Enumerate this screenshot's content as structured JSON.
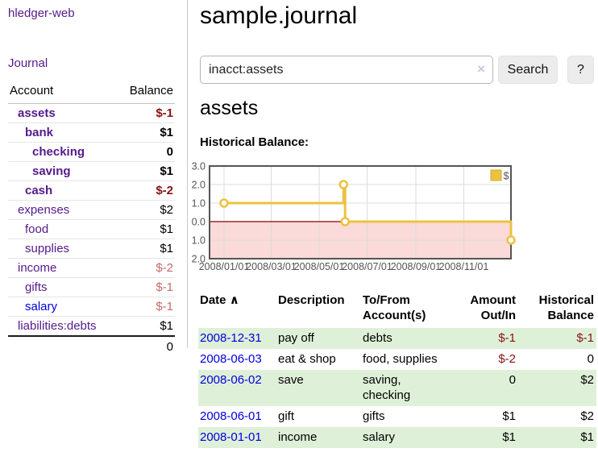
{
  "colors": {
    "link_visited_purple": "#551a8b",
    "link_blue": "#0000dd",
    "negative_strong": "#871414",
    "negative_soft": "#c46a6a",
    "row_green": "#dff0d8",
    "series_gold": "#edc240",
    "negative_region_pink": "#fbdada",
    "zero_line_red": "#8b0000",
    "axis_text_gray": "#545454"
  },
  "app": {
    "brand": "hledger-web",
    "journal_link": "Journal"
  },
  "sidebar": {
    "col_account": "Account",
    "col_balance": "Balance",
    "accounts": [
      {
        "name": "assets",
        "balance": "$-1",
        "level": 1,
        "emph": true,
        "neg": "strong"
      },
      {
        "name": "bank",
        "balance": "$1",
        "level": 2,
        "emph": true,
        "neg": "none"
      },
      {
        "name": "checking",
        "balance": "0",
        "level": 3,
        "emph": true,
        "neg": "none"
      },
      {
        "name": "saving",
        "balance": "$1",
        "level": 3,
        "emph": true,
        "neg": "none"
      },
      {
        "name": "cash",
        "balance": "$-2",
        "level": 2,
        "emph": true,
        "neg": "strong"
      },
      {
        "name": "expenses",
        "balance": "$2",
        "level": 1,
        "emph": false,
        "neg": "none"
      },
      {
        "name": "food",
        "balance": "$1",
        "level": 2,
        "emph": false,
        "neg": "none"
      },
      {
        "name": "supplies",
        "balance": "$1",
        "level": 2,
        "emph": false,
        "neg": "none"
      },
      {
        "name": "income",
        "balance": "$-2",
        "level": 1,
        "emph": false,
        "neg": "soft"
      },
      {
        "name": "gifts",
        "balance": "$-1",
        "level": 2,
        "emph": false,
        "neg": "soft"
      },
      {
        "name": "salary",
        "balance": "$-1",
        "level": 2,
        "emph": false,
        "neg": "soft",
        "link": "unvisited"
      },
      {
        "name": "liabilities:debts",
        "balance": "$1",
        "level": 1,
        "emph": false,
        "neg": "none"
      }
    ],
    "total": "0"
  },
  "header": {
    "title": "sample.journal"
  },
  "search": {
    "query": "inacct:assets",
    "clear_icon": "×",
    "button_label": "Search",
    "help_label": "?"
  },
  "register": {
    "heading": "assets",
    "chart_title": "Historical Balance:",
    "table": {
      "sort_icon": "∧",
      "headers": [
        "Date",
        "Description",
        "To/From Account(s)",
        "Amount Out/In",
        "Historical Balance"
      ],
      "rows": [
        {
          "date": "2008-12-31",
          "description": "pay off",
          "accounts": "debts",
          "amount": "$-1",
          "amount_neg": true,
          "balance": "$-1",
          "balance_neg": true,
          "shade": true
        },
        {
          "date": "2008-06-03",
          "description": "eat & shop",
          "accounts": "food, supplies",
          "amount": "$-2",
          "amount_neg": true,
          "balance": "0",
          "balance_neg": false,
          "shade": false
        },
        {
          "date": "2008-06-02",
          "description": "save",
          "accounts": "saving,\nchecking",
          "amount": "0",
          "amount_neg": false,
          "balance": "$2",
          "balance_neg": false,
          "shade": true
        },
        {
          "date": "2008-06-01",
          "description": "gift",
          "accounts": "gifts",
          "amount": "$1",
          "amount_neg": false,
          "balance": "$2",
          "balance_neg": false,
          "shade": false
        },
        {
          "date": "2008-01-01",
          "description": "income",
          "accounts": "salary",
          "amount": "$1",
          "amount_neg": false,
          "balance": "$1",
          "balance_neg": false,
          "shade": true
        }
      ]
    }
  },
  "chart_data": {
    "type": "line",
    "step": true,
    "title": "Historical Balance:",
    "legend": {
      "label": "$",
      "position": "top-right"
    },
    "series": [
      {
        "name": "$",
        "color": "#edc240",
        "points": [
          {
            "date": "2008/01/01",
            "day": 0,
            "value": 1
          },
          {
            "date": "2008/06/01",
            "day": 152,
            "value": 2
          },
          {
            "date": "2008/06/03",
            "day": 154,
            "value": 0
          },
          {
            "date": "2008/12/31",
            "day": 365,
            "value": -1
          }
        ]
      }
    ],
    "x_ticks": [
      {
        "label": "2008/01/01",
        "day": 0
      },
      {
        "label": "2008/03/01",
        "day": 60
      },
      {
        "label": "2008/05/01",
        "day": 121
      },
      {
        "label": "2008/07/01",
        "day": 182
      },
      {
        "label": "2008/09/01",
        "day": 244
      },
      {
        "label": "2008/11/01",
        "day": 305
      }
    ],
    "y_ticks": [
      "3.0",
      "2.0",
      "1.0",
      "0.0",
      "-1.0",
      "-2.0"
    ],
    "ylim": [
      -2,
      3
    ],
    "xlim_days": [
      0,
      365
    ],
    "grid": true,
    "negative_region_fill": "#fbdada",
    "zero_line_color": "#8b0000"
  }
}
